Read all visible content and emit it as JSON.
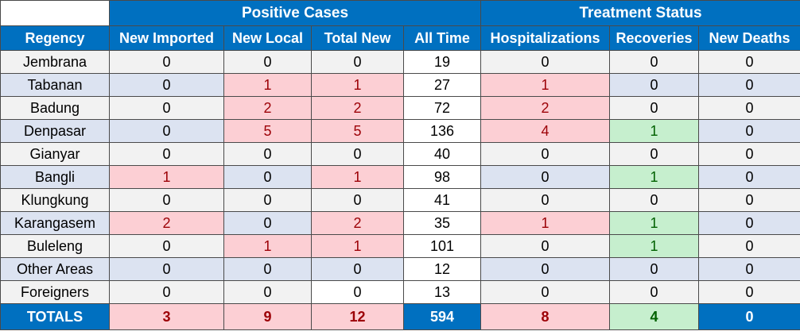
{
  "chart_data": {
    "type": "table",
    "group_headers": {
      "positive_cases": "Positive Cases",
      "treatment_status": "Treatment Status"
    },
    "columns": [
      "Regency",
      "New Imported",
      "New Local",
      "Total New",
      "All Time",
      "Hospitalizations",
      "Recoveries",
      "New Deaths"
    ],
    "rows": [
      {
        "regency": "Jembrana",
        "values": [
          "0",
          "0",
          "0",
          "19",
          "0",
          "0",
          "0"
        ]
      },
      {
        "regency": "Tabanan",
        "values": [
          "0",
          "1",
          "1",
          "27",
          "1",
          "0",
          "0"
        ]
      },
      {
        "regency": "Badung",
        "values": [
          "0",
          "2",
          "2",
          "72",
          "2",
          "0",
          "0"
        ]
      },
      {
        "regency": "Denpasar",
        "values": [
          "0",
          "5",
          "5",
          "136",
          "4",
          "1",
          "0"
        ]
      },
      {
        "regency": "Gianyar",
        "values": [
          "0",
          "0",
          "0",
          "40",
          "0",
          "0",
          "0"
        ]
      },
      {
        "regency": "Bangli",
        "values": [
          "1",
          "0",
          "1",
          "98",
          "0",
          "1",
          "0"
        ]
      },
      {
        "regency": "Klungkung",
        "values": [
          "0",
          "0",
          "0",
          "41",
          "0",
          "0",
          "0"
        ]
      },
      {
        "regency": "Karangasem",
        "values": [
          "2",
          "0",
          "2",
          "35",
          "1",
          "1",
          "0"
        ]
      },
      {
        "regency": "Buleleng",
        "values": [
          "0",
          "1",
          "1",
          "101",
          "0",
          "1",
          "0"
        ]
      },
      {
        "regency": "Other Areas",
        "values": [
          "0",
          "0",
          "0",
          "12",
          "0",
          "0",
          "0"
        ]
      },
      {
        "regency": "Foreigners",
        "values": [
          "0",
          "0",
          "0",
          "13",
          "0",
          "0",
          "0"
        ]
      }
    ],
    "totals": {
      "label": "TOTALS",
      "values": [
        "3",
        "9",
        "12",
        "594",
        "8",
        "4",
        "0"
      ]
    }
  },
  "colors": {
    "header_blue": "#0070c0",
    "increase_pink": "#fccfd4",
    "increase_text": "#9c0006",
    "recovery_green": "#c6efce",
    "recovery_text": "#006100",
    "band_gray": "#f2f2f2",
    "band_blue": "#dce3f1"
  }
}
